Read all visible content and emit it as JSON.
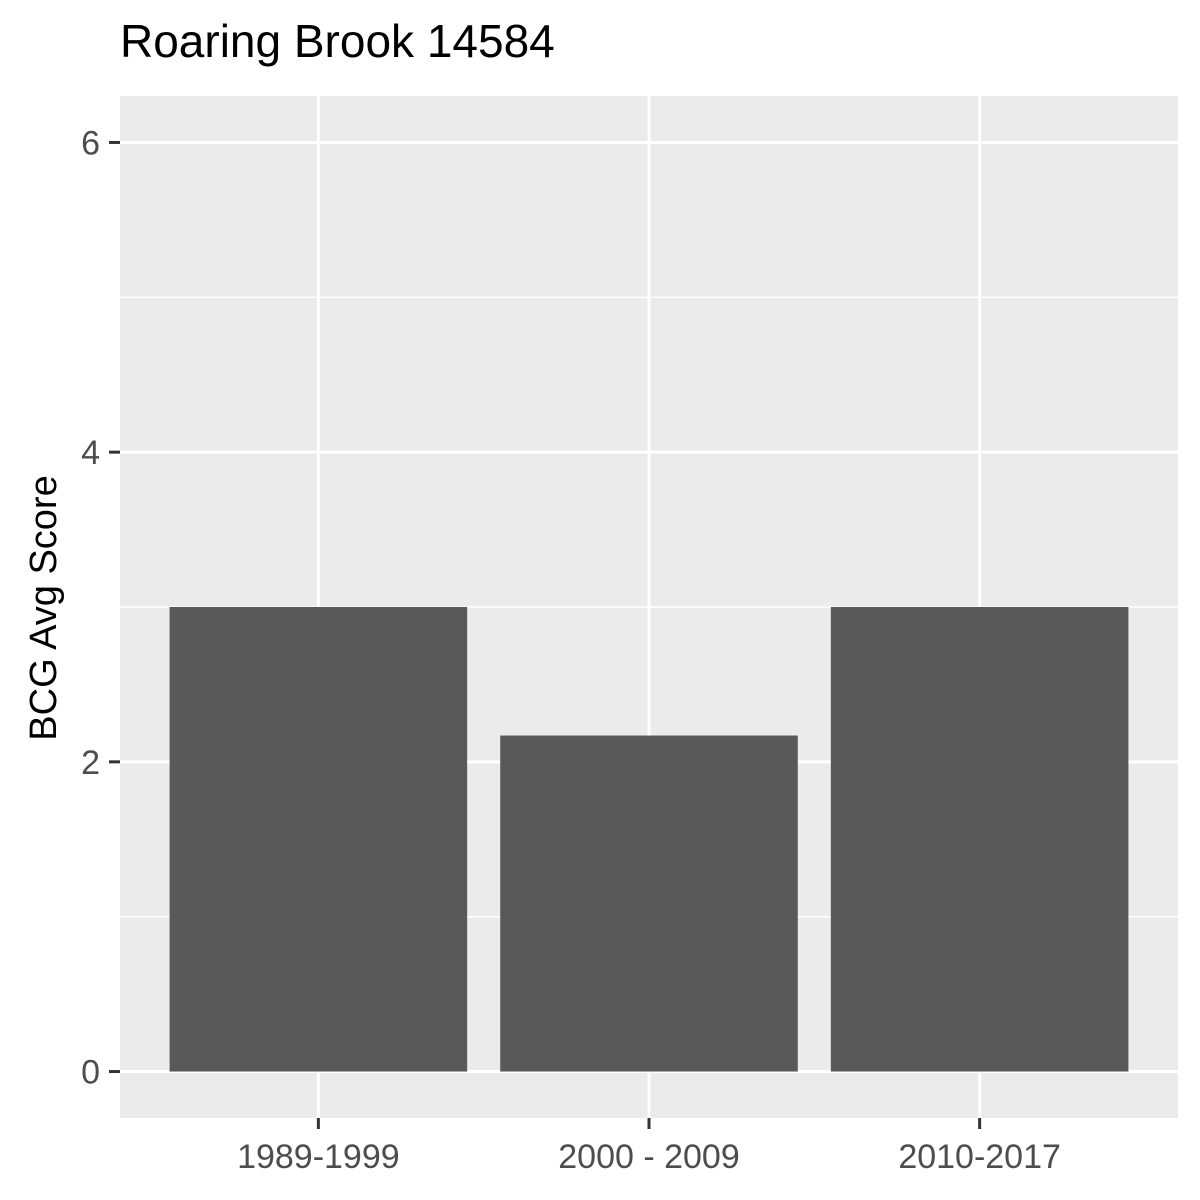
{
  "chart_data": {
    "type": "bar",
    "title": "Roaring Brook 14584",
    "xlabel": "",
    "ylabel": "BCG Avg Score",
    "categories": [
      "1989-1999",
      "2000 - 2009",
      "2010-2017"
    ],
    "values": [
      3.0,
      2.17,
      3.0
    ],
    "ylim": [
      -0.3,
      6.3
    ],
    "yticks": [
      0,
      2,
      4,
      6
    ],
    "y_minor_ticks": [
      1,
      3,
      5
    ],
    "grid": true,
    "legend": "none",
    "colors": {
      "bar": "#595959",
      "panel": "#ebebeb",
      "grid": "#ffffff",
      "tick": "#333333"
    }
  }
}
